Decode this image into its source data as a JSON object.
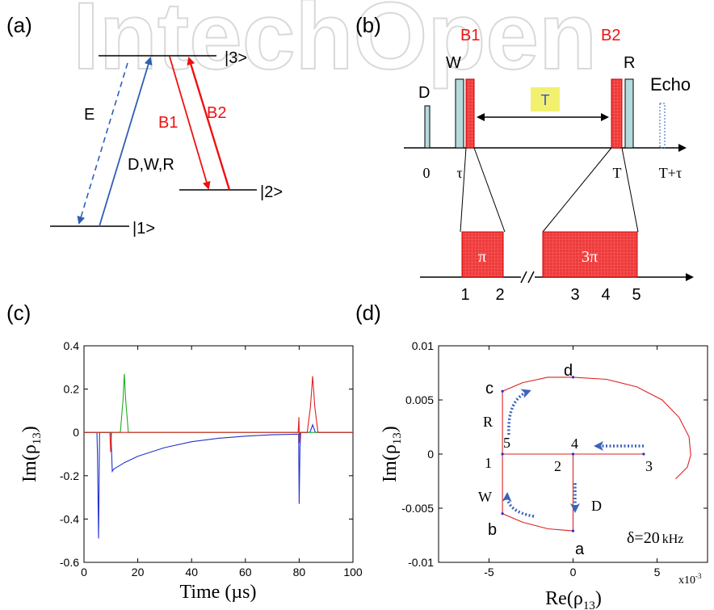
{
  "watermark": "IntechOpen",
  "panels": {
    "a": {
      "label": "(a)",
      "levels": [
        "|3>",
        "|2>",
        "|1>"
      ],
      "transitions": {
        "E": "E",
        "DWR": "D,W,R",
        "B1": "B1",
        "B2": "B2"
      }
    },
    "b": {
      "label": "(b)",
      "pulses": {
        "D": "D",
        "W": "W",
        "B1": "B1",
        "B2": "B2",
        "R": "R",
        "Echo": "Echo"
      },
      "delay_label": "T",
      "time_ticks": [
        "0",
        "τ",
        "T",
        "T+τ"
      ],
      "zoom_pulses": [
        "π",
        "3π"
      ],
      "zoom_points": [
        "1",
        "2",
        "3",
        "4",
        "5"
      ]
    },
    "c": {
      "label": "(c)"
    },
    "d": {
      "label": "(d)",
      "points": [
        "a",
        "b",
        "c",
        "d",
        "1",
        "2",
        "3",
        "4",
        "5"
      ],
      "transition_labels": [
        "D",
        "W",
        "R"
      ],
      "detuning": "δ=20",
      "detuning_unit": "kHz"
    }
  },
  "chart_data": [
    {
      "type": "line",
      "panel": "c",
      "xlabel": "Time (µs)",
      "ylabel": "Im(ρ13)",
      "xlim": [
        0,
        100
      ],
      "ylim": [
        -0.6,
        0.4
      ],
      "xticks": [
        "0",
        "20",
        "40",
        "60",
        "80",
        "100"
      ],
      "yticks": [
        "0.4",
        "0.2",
        "0",
        "-0.2",
        "-0.4",
        "-0.6"
      ],
      "series": [
        {
          "color": "#2233cc",
          "x": [
            0,
            4.8,
            5,
            5.4,
            5.8,
            10,
            10.5,
            11,
            15,
            20,
            30,
            40,
            50,
            60,
            70,
            79.8,
            80,
            80.3,
            80.6,
            84,
            85,
            86,
            100
          ],
          "y": [
            0,
            0,
            -0.1,
            -0.49,
            0,
            0,
            -0.18,
            -0.17,
            -0.14,
            -0.11,
            -0.07,
            -0.043,
            -0.027,
            -0.017,
            -0.011,
            -0.008,
            -0.33,
            -0.07,
            0,
            0,
            0.035,
            0,
            0
          ]
        },
        {
          "color": "#22aa22",
          "x": [
            0,
            13.5,
            14.5,
            15,
            15.5,
            16.5,
            100
          ],
          "y": [
            0,
            0,
            0.15,
            0.27,
            0.15,
            0,
            0
          ]
        },
        {
          "color": "#dd2222",
          "x": [
            0,
            9.6,
            9.9,
            10.2,
            79.6,
            79.9,
            80.1,
            80.4,
            83,
            84.2,
            85,
            85.8,
            87,
            100
          ],
          "y": [
            0,
            0,
            -0.09,
            0,
            0,
            0.07,
            -0.05,
            0,
            0,
            0.12,
            0.26,
            0.12,
            0,
            0
          ]
        }
      ]
    },
    {
      "type": "line",
      "panel": "d",
      "xlabel": "Re(ρ13)",
      "ylabel": "Im(ρ13)",
      "xlim": [
        -8,
        8
      ],
      "ylim": [
        -0.01,
        0.01
      ],
      "xticks": [
        "-5",
        "0",
        "5"
      ],
      "yticks": [
        "0.01",
        "0.005",
        "0",
        "-0.005",
        "-0.01"
      ],
      "x_multiplier": "x10-3",
      "series": [
        {
          "color": "#dd2222",
          "x": [
            0,
            0,
            -1.5,
            -3,
            -4.2,
            -4.2,
            -4.2,
            -3,
            -1.5,
            0,
            2,
            3.8,
            5.3,
            6.3,
            6.9,
            7,
            6.8,
            6.1
          ],
          "y": [
            0,
            -0.0071,
            -0.0069,
            -0.0063,
            -0.0055,
            0,
            0.0058,
            0.0066,
            0.0071,
            0.0071,
            0.0069,
            0.0062,
            0.005,
            0.0034,
            0.0016,
            -0.0001,
            -0.0012,
            -0.0023
          ]
        },
        {
          "color": "#dd2222",
          "x": [
            -4.2,
            0,
            4.2
          ],
          "y": [
            0,
            0,
            0
          ]
        }
      ]
    }
  ]
}
